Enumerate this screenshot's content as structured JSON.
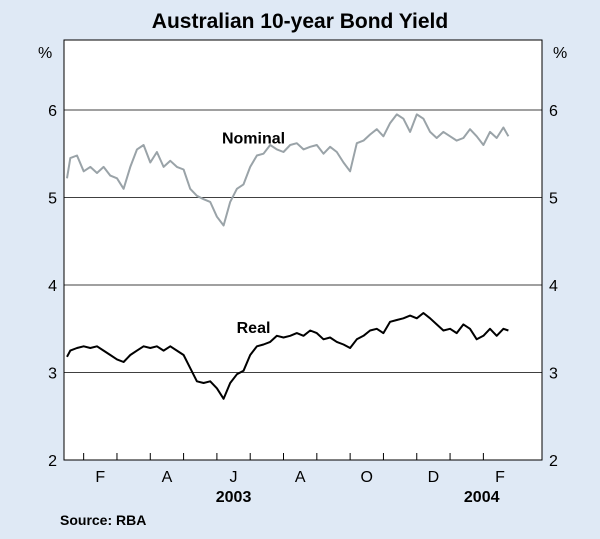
{
  "chart_data": {
    "type": "line",
    "title": "Australian 10-year Bond Yield",
    "ylabel_left": "%",
    "ylabel_right": "%",
    "ylim": [
      2,
      6.8
    ],
    "yticks": [
      2,
      3,
      4,
      5,
      6
    ],
    "xlim": [
      0,
      14.2
    ],
    "month_ticks": [
      {
        "label": "F",
        "x": 1
      },
      {
        "label": "A",
        "x": 3
      },
      {
        "label": "J",
        "x": 5
      },
      {
        "label": "A",
        "x": 7
      },
      {
        "label": "O",
        "x": 9
      },
      {
        "label": "D",
        "x": 11
      },
      {
        "label": "F",
        "x": 13
      }
    ],
    "year_labels": [
      {
        "label": "2003",
        "x": 5
      },
      {
        "label": "2004",
        "x": 12.45
      }
    ],
    "series": [
      {
        "name": "Nominal",
        "color": "#9aa3a8",
        "x": [
          0,
          0.1,
          0.3,
          0.5,
          0.7,
          0.9,
          1.1,
          1.3,
          1.5,
          1.7,
          1.9,
          2.1,
          2.3,
          2.5,
          2.7,
          2.9,
          3.1,
          3.3,
          3.5,
          3.7,
          3.9,
          4.1,
          4.3,
          4.5,
          4.7,
          4.9,
          5.1,
          5.3,
          5.5,
          5.7,
          5.9,
          6.1,
          6.3,
          6.5,
          6.7,
          6.9,
          7.1,
          7.3,
          7.5,
          7.7,
          7.9,
          8.1,
          8.3,
          8.5,
          8.7,
          8.9,
          9.1,
          9.3,
          9.5,
          9.7,
          9.9,
          10.1,
          10.3,
          10.5,
          10.7,
          10.9,
          11.1,
          11.3,
          11.5,
          11.7,
          11.9,
          12.1,
          12.3,
          12.5,
          12.7,
          12.9,
          13.1,
          13.25
        ],
        "y": [
          5.22,
          5.45,
          5.48,
          5.3,
          5.35,
          5.28,
          5.35,
          5.25,
          5.22,
          5.1,
          5.35,
          5.55,
          5.6,
          5.4,
          5.52,
          5.35,
          5.42,
          5.35,
          5.32,
          5.1,
          5.02,
          4.98,
          4.95,
          4.78,
          4.68,
          4.95,
          5.1,
          5.15,
          5.35,
          5.48,
          5.5,
          5.6,
          5.55,
          5.52,
          5.6,
          5.62,
          5.55,
          5.58,
          5.6,
          5.5,
          5.58,
          5.52,
          5.4,
          5.3,
          5.62,
          5.65,
          5.72,
          5.78,
          5.7,
          5.85,
          5.95,
          5.9,
          5.75,
          5.95,
          5.9,
          5.75,
          5.68,
          5.75,
          5.7,
          5.65,
          5.68,
          5.78,
          5.7,
          5.6,
          5.75,
          5.68,
          5.8,
          5.7
        ]
      },
      {
        "name": "Real",
        "color": "#000000",
        "x": [
          0,
          0.1,
          0.3,
          0.5,
          0.7,
          0.9,
          1.1,
          1.3,
          1.5,
          1.7,
          1.9,
          2.1,
          2.3,
          2.5,
          2.7,
          2.9,
          3.1,
          3.3,
          3.5,
          3.7,
          3.9,
          4.1,
          4.3,
          4.5,
          4.7,
          4.9,
          5.1,
          5.3,
          5.5,
          5.7,
          5.9,
          6.1,
          6.3,
          6.5,
          6.7,
          6.9,
          7.1,
          7.3,
          7.5,
          7.7,
          7.9,
          8.1,
          8.3,
          8.5,
          8.7,
          8.9,
          9.1,
          9.3,
          9.5,
          9.7,
          9.9,
          10.1,
          10.3,
          10.5,
          10.7,
          10.9,
          11.1,
          11.3,
          11.5,
          11.7,
          11.9,
          12.1,
          12.3,
          12.5,
          12.7,
          12.9,
          13.1,
          13.25
        ],
        "y": [
          3.18,
          3.25,
          3.28,
          3.3,
          3.28,
          3.3,
          3.25,
          3.2,
          3.15,
          3.12,
          3.2,
          3.25,
          3.3,
          3.28,
          3.3,
          3.25,
          3.3,
          3.25,
          3.2,
          3.05,
          2.9,
          2.88,
          2.9,
          2.82,
          2.7,
          2.88,
          2.98,
          3.02,
          3.2,
          3.3,
          3.32,
          3.35,
          3.42,
          3.4,
          3.42,
          3.45,
          3.42,
          3.48,
          3.45,
          3.38,
          3.4,
          3.35,
          3.32,
          3.28,
          3.38,
          3.42,
          3.48,
          3.5,
          3.45,
          3.58,
          3.6,
          3.62,
          3.65,
          3.62,
          3.68,
          3.62,
          3.55,
          3.48,
          3.5,
          3.45,
          3.55,
          3.5,
          3.38,
          3.42,
          3.5,
          3.42,
          3.5,
          3.48
        ]
      }
    ],
    "annotations": [
      {
        "text": "Nominal",
        "x": 5.6,
        "y": 5.62
      },
      {
        "text": "Real",
        "x": 5.6,
        "y": 3.45
      }
    ],
    "source": "Source: RBA"
  }
}
